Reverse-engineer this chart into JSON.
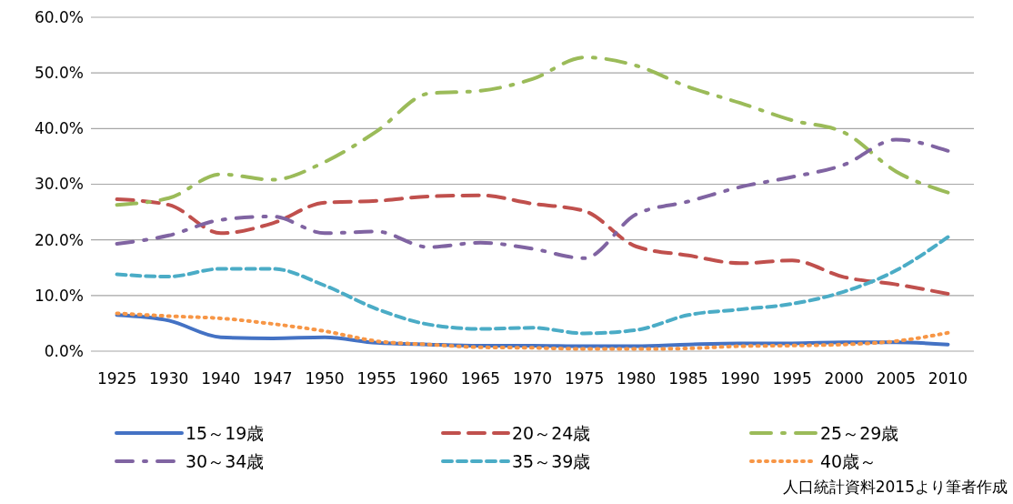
{
  "chart_data": {
    "type": "line",
    "categories": [
      "1925",
      "1930",
      "1940",
      "1947",
      "1950",
      "1955",
      "1960",
      "1965",
      "1970",
      "1975",
      "1980",
      "1985",
      "1990",
      "1995",
      "2000",
      "2005",
      "2010"
    ],
    "series": [
      {
        "name": "15～19歳",
        "color": "#4472c4",
        "line_style": "solid",
        "values": [
          6.5,
          5.5,
          2.5,
          2.3,
          2.5,
          1.5,
          1.2,
          1.0,
          1.0,
          0.9,
          0.9,
          1.2,
          1.4,
          1.4,
          1.6,
          1.6,
          1.2
        ]
      },
      {
        "name": "20～24歳",
        "color": "#c0504d",
        "line_style": "dashed",
        "values": [
          27.3,
          26.3,
          21.2,
          23.0,
          26.7,
          27.0,
          27.8,
          28.0,
          26.5,
          25.2,
          18.8,
          17.2,
          15.8,
          16.3,
          13.3,
          12.0,
          10.3
        ]
      },
      {
        "name": "25～29歳",
        "color": "#9bbb59",
        "line_style": "dashed",
        "values": [
          26.3,
          27.5,
          31.8,
          30.8,
          34.0,
          39.5,
          46.3,
          46.8,
          48.9,
          52.8,
          51.3,
          47.5,
          44.6,
          41.5,
          39.3,
          32.3,
          28.5
        ]
      },
      {
        "name": "30～34歳",
        "color": "#8064a2",
        "line_style": "dashed",
        "values": [
          19.3,
          20.8,
          23.6,
          24.2,
          21.2,
          21.5,
          18.7,
          19.5,
          18.4,
          16.7,
          24.6,
          26.9,
          29.5,
          31.3,
          33.5,
          38.0,
          36.0
        ]
      },
      {
        "name": "35～39歳",
        "color": "#4bacc6",
        "line_style": "dashed",
        "values": [
          13.8,
          13.4,
          14.8,
          14.8,
          11.8,
          7.6,
          4.8,
          4.0,
          4.2,
          3.2,
          3.8,
          6.5,
          7.5,
          8.5,
          10.7,
          14.5,
          20.5
        ]
      },
      {
        "name": "40歳～",
        "color": "#f79646",
        "line_style": "dotted",
        "values": [
          6.8,
          6.3,
          5.9,
          4.9,
          3.6,
          1.8,
          1.2,
          0.7,
          0.6,
          0.4,
          0.4,
          0.5,
          0.9,
          1.0,
          1.2,
          1.8,
          3.3
        ]
      }
    ],
    "ylim": [
      0,
      60
    ],
    "yticks": [
      {
        "value": 0,
        "label": "0.0%"
      },
      {
        "value": 10,
        "label": "10.0%"
      },
      {
        "value": 20,
        "label": "20.0%"
      },
      {
        "value": 30,
        "label": "30.0%"
      },
      {
        "value": 40,
        "label": "40.0%"
      },
      {
        "value": 50,
        "label": "50.0%"
      },
      {
        "value": 60,
        "label": "60.0%"
      }
    ],
    "grid": "y",
    "legend": "bottom",
    "annotations": [
      "人口統計資料2015より筆者作成"
    ]
  }
}
